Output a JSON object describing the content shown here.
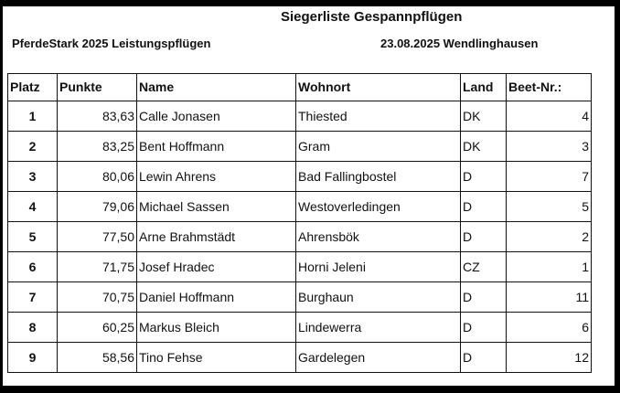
{
  "header": {
    "title": "Siegerliste Gespannpflügen",
    "event": "PferdeStark 2025 Leistungspflügen",
    "date_place": "23.08.2025 Wendlinghausen"
  },
  "table": {
    "columns": [
      "Platz",
      "Punkte",
      "Name",
      "Wohnort",
      "Land",
      "Beet-Nr.:"
    ],
    "rows": [
      [
        "1",
        "83,63",
        "Calle Jonasen",
        "Thiested",
        "DK",
        "4"
      ],
      [
        "2",
        "83,25",
        "Bent Hoffmann",
        "Gram",
        "DK",
        "3"
      ],
      [
        "3",
        "80,06",
        "Lewin Ahrens",
        "Bad Fallingbostel",
        "D",
        "7"
      ],
      [
        "4",
        "79,06",
        "Michael Sassen",
        "Westoverledingen",
        "D",
        "5"
      ],
      [
        "5",
        "77,50",
        "Arne Brahmstädt",
        "Ahrensbök",
        "D",
        "2"
      ],
      [
        "6",
        "71,75",
        "Josef Hradec",
        "Horni Jeleni",
        "CZ",
        "1"
      ],
      [
        "7",
        "70,75",
        "Daniel Hoffmann",
        "Burghaun",
        "D",
        "11"
      ],
      [
        "8",
        "60,25",
        "Markus Bleich",
        "Lindewerra",
        "D",
        "6"
      ],
      [
        "9",
        "58,56",
        "Tino Fehse",
        "Gardelegen",
        "D",
        "12"
      ]
    ]
  }
}
